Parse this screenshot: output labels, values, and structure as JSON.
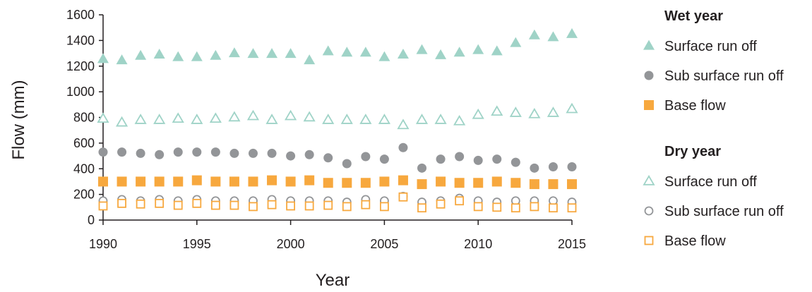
{
  "chart_data": {
    "type": "scatter",
    "xlabel": "Year",
    "ylabel": "Flow (mm)",
    "xlim": [
      1990,
      2015
    ],
    "ylim": [
      0,
      1600
    ],
    "xticks": [
      1990,
      1995,
      2000,
      2005,
      2010,
      2015
    ],
    "yticks": [
      0,
      200,
      400,
      600,
      800,
      1000,
      1200,
      1400,
      1600
    ],
    "grid": false,
    "legend_position": "right",
    "x": [
      1990,
      1991,
      1992,
      1993,
      1994,
      1995,
      1996,
      1997,
      1998,
      1999,
      2000,
      2001,
      2002,
      2003,
      2004,
      2005,
      2006,
      2007,
      2008,
      2009,
      2010,
      2011,
      2012,
      2013,
      2014,
      2015
    ],
    "groups": [
      {
        "title": "Wet year",
        "series": [
          {
            "name": "Surface run off",
            "marker": "triangle-filled",
            "color": "#9fd3c7",
            "values": [
              1255,
              1245,
              1280,
              1290,
              1270,
              1270,
              1280,
              1300,
              1295,
              1295,
              1295,
              1245,
              1315,
              1305,
              1305,
              1270,
              1290,
              1325,
              1285,
              1305,
              1325,
              1315,
              1380,
              1440,
              1425,
              1450
            ]
          },
          {
            "name": "Sub surface run off",
            "marker": "circle-filled",
            "color": "#939598",
            "values": [
              530,
              530,
              520,
              510,
              530,
              530,
              530,
              520,
              520,
              520,
              500,
              510,
              485,
              440,
              495,
              475,
              565,
              405,
              475,
              495,
              465,
              475,
              450,
              405,
              415,
              415
            ]
          },
          {
            "name": "Base flow",
            "marker": "square-filled",
            "color": "#f7a83e",
            "values": [
              300,
              300,
              300,
              300,
              300,
              310,
              300,
              300,
              300,
              310,
              300,
              310,
              290,
              290,
              290,
              300,
              310,
              280,
              300,
              290,
              290,
              300,
              290,
              280,
              280,
              280
            ]
          }
        ]
      },
      {
        "title": "Dry year",
        "series": [
          {
            "name": "Surface run off",
            "marker": "triangle-open",
            "color": "#9fd3c7",
            "values": [
              790,
              760,
              780,
              780,
              790,
              780,
              790,
              800,
              810,
              780,
              810,
              800,
              780,
              780,
              780,
              780,
              740,
              780,
              780,
              770,
              820,
              845,
              835,
              825,
              835,
              865
            ]
          },
          {
            "name": "Sub surface run off",
            "marker": "circle-open",
            "color": "#939598",
            "values": [
              150,
              160,
              150,
              160,
              150,
              160,
              150,
              150,
              150,
              160,
              150,
              150,
              150,
              140,
              160,
              150,
              185,
              140,
              150,
              170,
              150,
              140,
              150,
              150,
              150,
              140
            ]
          },
          {
            "name": "Base flow",
            "marker": "square-open",
            "color": "#f7a83e",
            "values": [
              110,
              130,
              125,
              130,
              115,
              130,
              115,
              115,
              105,
              120,
              110,
              110,
              115,
              105,
              120,
              105,
              180,
              95,
              125,
              150,
              105,
              100,
              95,
              105,
              95,
              95
            ]
          }
        ]
      }
    ]
  }
}
